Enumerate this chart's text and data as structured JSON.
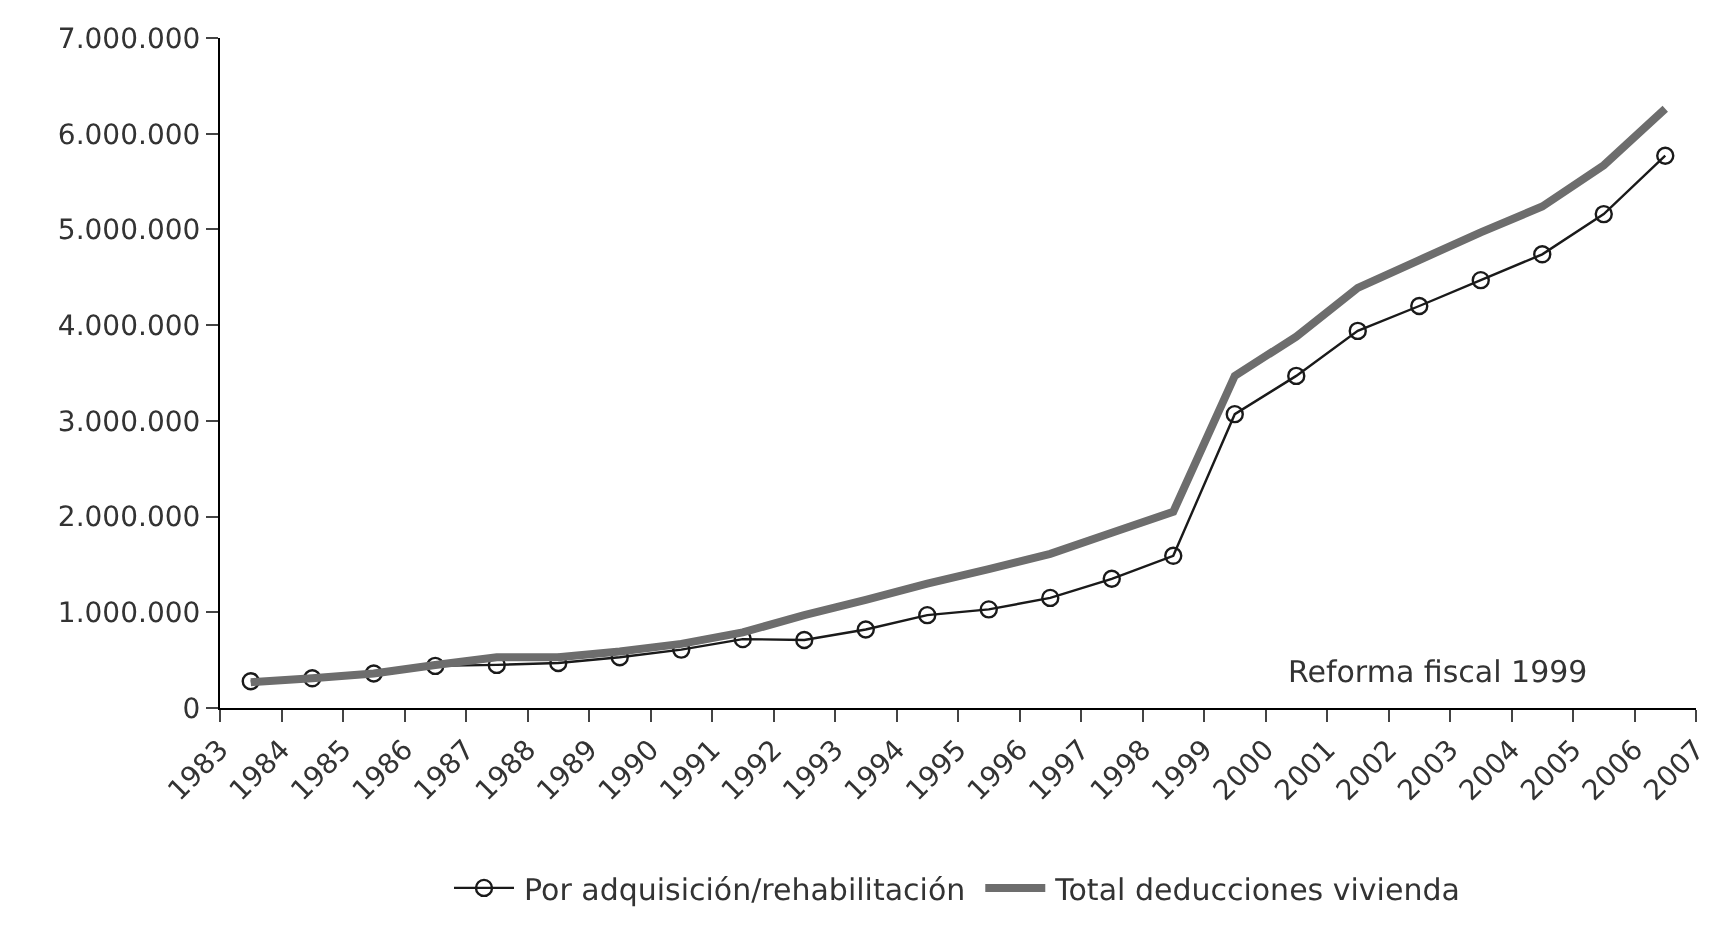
{
  "chart_data": {
    "type": "line",
    "x": [
      1983.5,
      1984.5,
      1985.5,
      1986.5,
      1987.5,
      1988.5,
      1989.5,
      1990.5,
      1991.5,
      1992.5,
      1993.5,
      1994.5,
      1995.5,
      1996.5,
      1997.5,
      1998.5,
      1999.5,
      2000.5,
      2001.5,
      2002.5,
      2003.5,
      2004.5,
      2005.5,
      2006.5
    ],
    "series": [
      {
        "name": "Por adquisición/rehabilitación",
        "color": "#1a1a1a",
        "marker": "circle",
        "values": [
          280000,
          310000,
          360000,
          440000,
          450000,
          470000,
          530000,
          610000,
          720000,
          710000,
          820000,
          970000,
          1030000,
          1150000,
          1350000,
          1590000,
          3070000,
          3470000,
          3940000,
          4200000,
          4470000,
          4740000,
          5160000,
          5770000
        ]
      },
      {
        "name": "Total deducciones vivienda",
        "color": "#6d6d6d",
        "marker": "none",
        "values": [
          270000,
          310000,
          360000,
          450000,
          530000,
          530000,
          590000,
          670000,
          790000,
          970000,
          1130000,
          1300000,
          1450000,
          1610000,
          1830000,
          2050000,
          3470000,
          3880000,
          4390000,
          4680000,
          4970000,
          5240000,
          5670000,
          6260000
        ]
      }
    ],
    "xlim": [
      1983,
      2007
    ],
    "xticks": [
      1983,
      1984,
      1985,
      1986,
      1987,
      1988,
      1989,
      1990,
      1991,
      1992,
      1993,
      1994,
      1995,
      1996,
      1997,
      1998,
      1999,
      2000,
      2001,
      2002,
      2003,
      2004,
      2005,
      2006,
      2007
    ],
    "ylim": [
      0,
      7000000
    ],
    "yticks": [
      0,
      {
        "value": 1000000,
        "label": "1.000.000"
      },
      {
        "value": 2000000,
        "label": "2.000.000"
      },
      {
        "value": 3000000,
        "label": "3.000.000"
      },
      {
        "value": 4000000,
        "label": "4.000.000"
      },
      {
        "value": 5000000,
        "label": "5.000.000"
      },
      {
        "value": 6000000,
        "label": "6.000.000"
      },
      {
        "value": 7000000,
        "label": "7.000.000"
      }
    ],
    "annotations": [
      "Reforma fiscal 1999"
    ],
    "legend": "bottom",
    "line_style": "solid"
  }
}
